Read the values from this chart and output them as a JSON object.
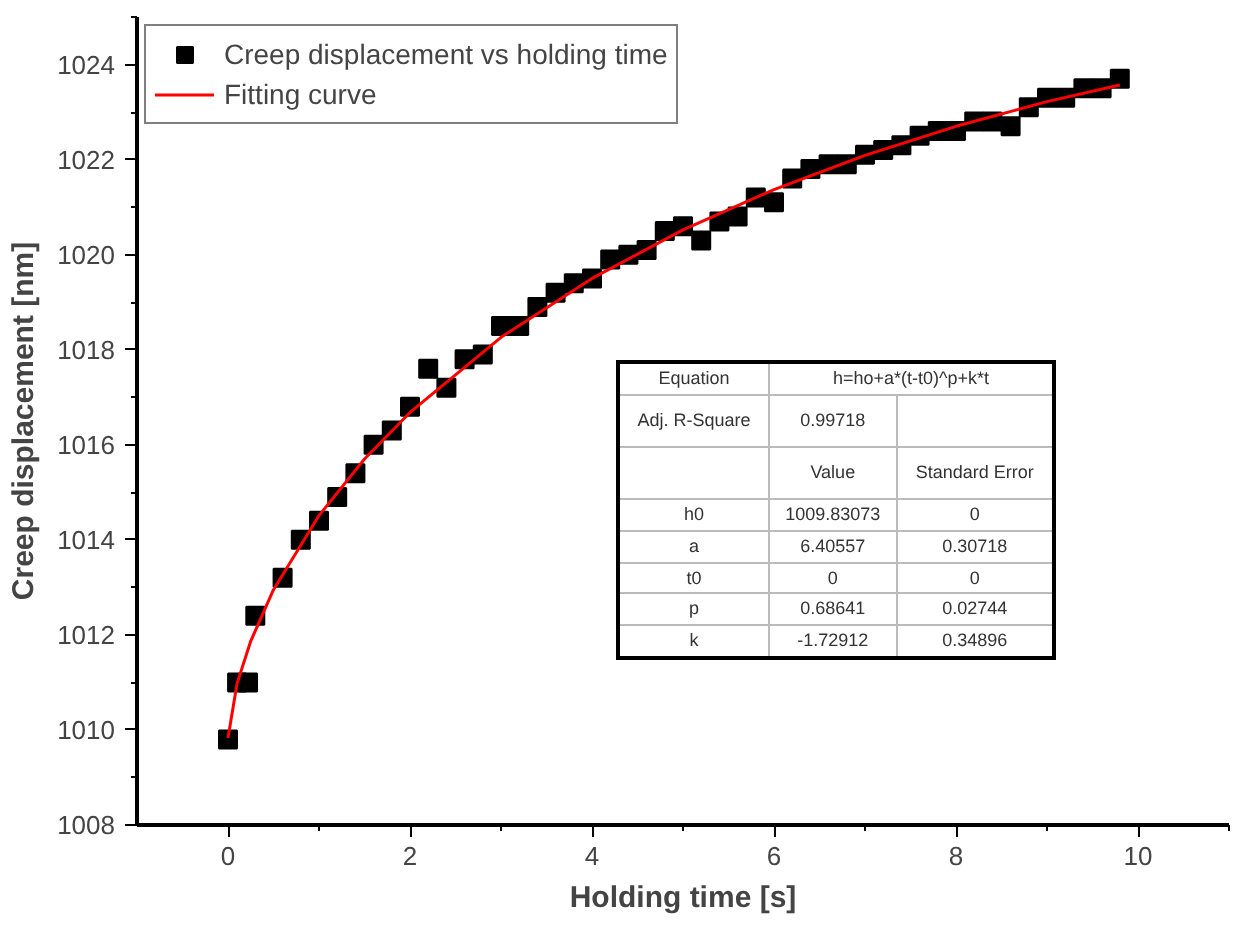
{
  "chart_data": {
    "type": "scatter",
    "xlabel": "Holding time [s]",
    "ylabel": "Creep displacement [nm]",
    "xlim": [
      -1,
      11
    ],
    "xticks": [
      0,
      2,
      4,
      6,
      8,
      10
    ],
    "ylim": [
      1008,
      1025
    ],
    "yticks": [
      1008,
      1010,
      1012,
      1014,
      1016,
      1018,
      1020,
      1022,
      1024
    ],
    "grid": false,
    "legend": "top left",
    "marker": "square",
    "x": [
      0,
      0.1,
      0.22,
      0.3,
      0.6,
      0.8,
      1.0,
      1.2,
      1.4,
      1.6,
      1.8,
      2.0,
      2.2,
      2.4,
      2.6,
      2.8,
      3.0,
      3.2,
      3.4,
      3.6,
      3.8,
      4.0,
      4.2,
      4.4,
      4.6,
      4.8,
      5.0,
      5.2,
      5.4,
      5.6,
      5.8,
      6.0,
      6.2,
      6.4,
      6.6,
      6.8,
      7.0,
      7.2,
      7.4,
      7.6,
      7.8,
      8.0,
      8.2,
      8.4,
      8.6,
      8.8,
      9.0,
      9.2,
      9.4,
      9.6,
      9.8
    ],
    "series": [
      {
        "name": "Creep displacement vs holding time",
        "color": "#000000",
        "values": [
          1009.8,
          1011.0,
          1011.0,
          1012.4,
          1013.2,
          1014.0,
          1014.4,
          1014.9,
          1015.4,
          1016.0,
          1016.3,
          1016.8,
          1017.6,
          1017.2,
          1017.8,
          1017.9,
          1018.5,
          1018.5,
          1018.9,
          1019.2,
          1019.4,
          1019.5,
          1019.9,
          1020.0,
          1020.1,
          1020.5,
          1020.6,
          1020.3,
          1020.7,
          1020.8,
          1021.2,
          1021.1,
          1021.6,
          1021.8,
          1021.9,
          1021.9,
          1022.1,
          1022.2,
          1022.3,
          1022.5,
          1022.6,
          1022.6,
          1022.8,
          1022.8,
          1022.7,
          1023.1,
          1023.3,
          1023.3,
          1023.5,
          1023.5,
          1023.7
        ]
      },
      {
        "name": "Fitting curve",
        "type": "line",
        "color": "#ff0000",
        "marker": "none",
        "x": [
          0,
          0.1,
          0.25,
          0.5,
          1,
          1.5,
          2,
          3,
          4,
          5,
          6,
          7,
          8,
          9,
          9.8
        ],
        "values": [
          1009.83,
          1010.98,
          1011.87,
          1012.95,
          1014.51,
          1015.7,
          1016.68,
          1018.26,
          1019.5,
          1020.52,
          1021.37,
          1022.09,
          1022.7,
          1023.22,
          1023.57
        ]
      }
    ],
    "annotations": [
      "Equation",
      "h=ho+a*(t-t0)^p+k*t",
      "Adj. R-Square",
      "0.99718",
      "Value",
      "Standard Error",
      "h0",
      "1009.83073",
      "0",
      "a",
      "6.40557",
      "0.30718",
      "t0",
      "0",
      "0",
      "p",
      "0.68641",
      "0.02744",
      "k",
      "-1.72912",
      "0.34896"
    ]
  }
}
